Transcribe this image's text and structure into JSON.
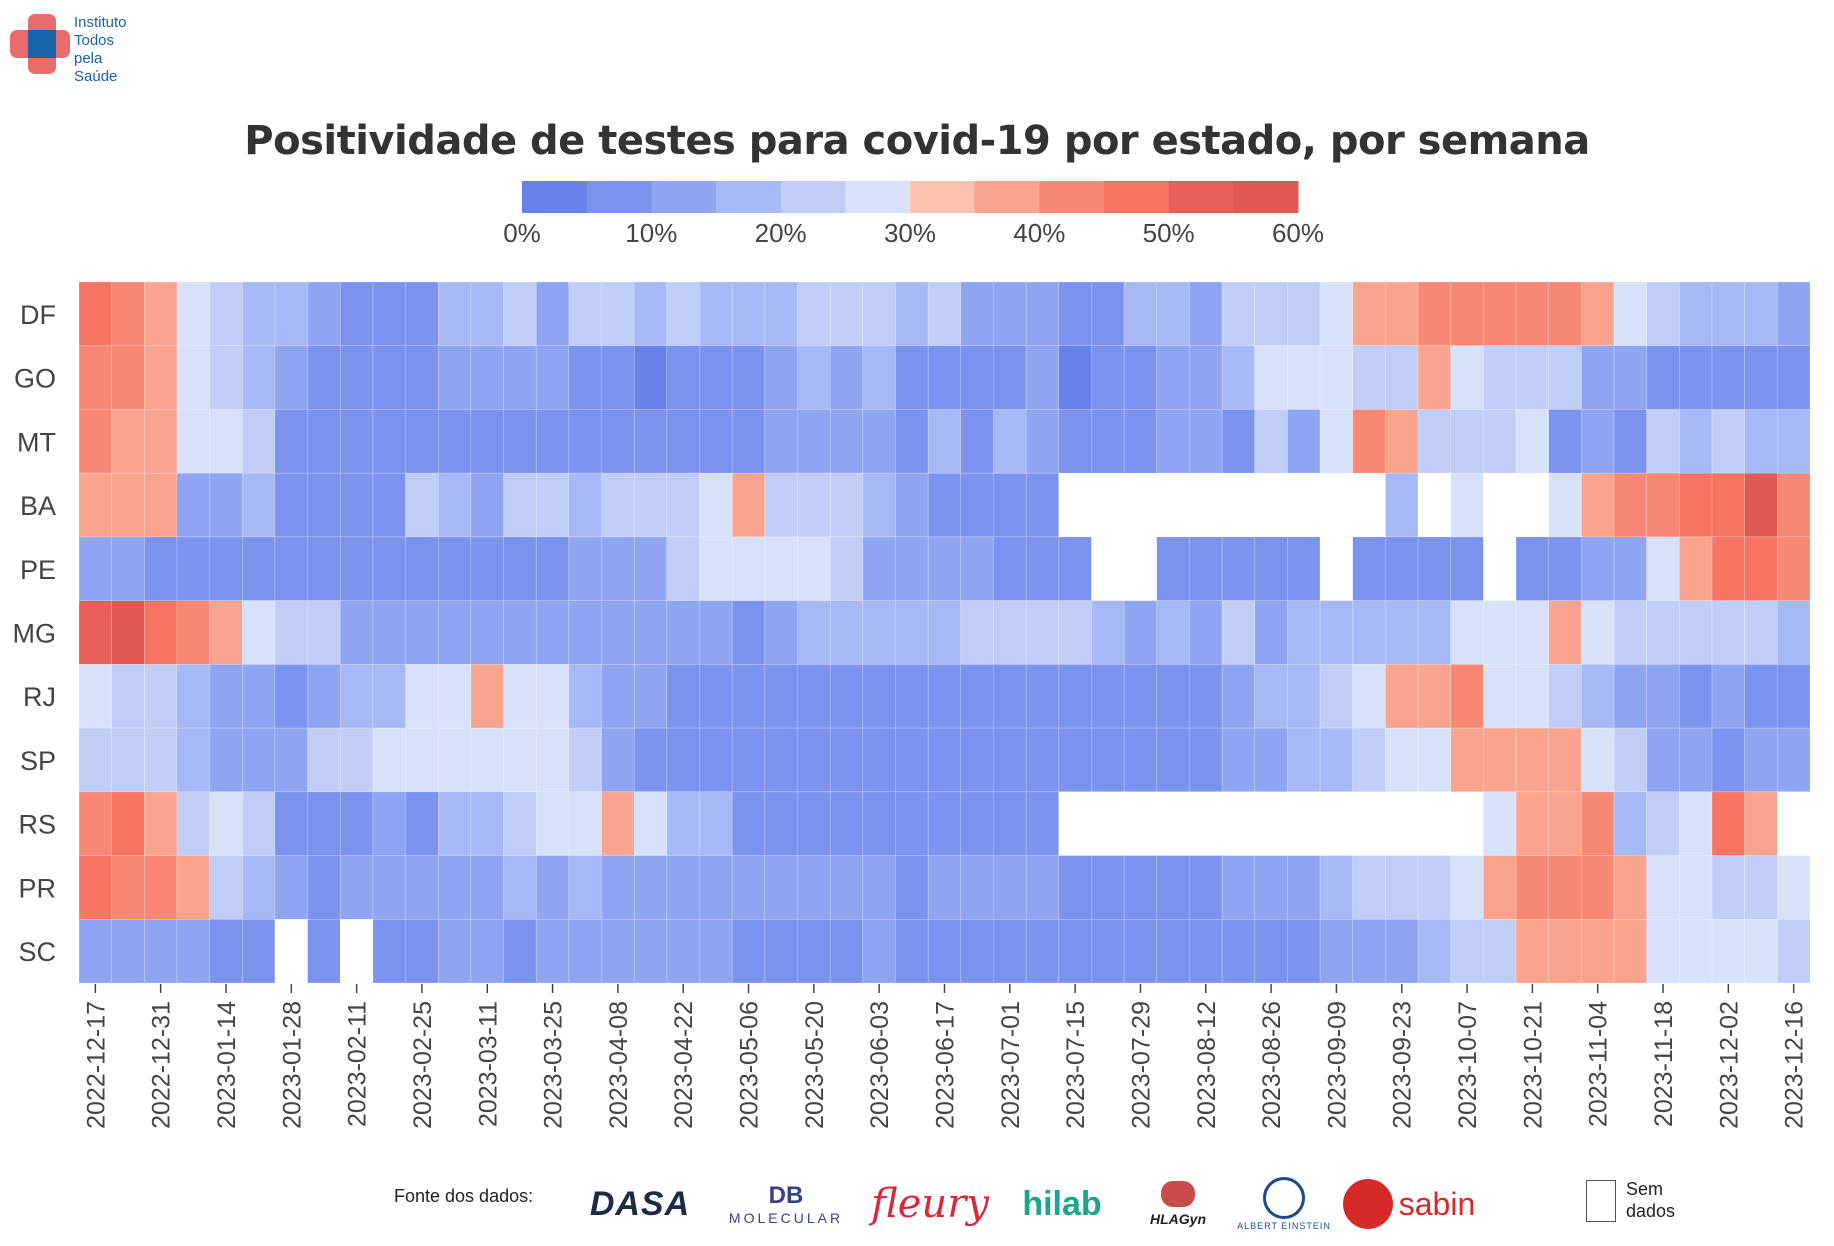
{
  "logo": {
    "line1": "Instituto",
    "line2": "Todos",
    "line3": "pela",
    "line4": "Saúde"
  },
  "footer": {
    "source_label": "Fonte dos dados:",
    "logos": {
      "dasa": "DASA",
      "db_line1": "DB",
      "db_line2": "MOLECULAR",
      "fleury": "fleury",
      "hilab": "hilab",
      "hlagyn": "HLAGyn",
      "einstein": "ALBERT EINSTEIN",
      "sabin": "sabin"
    },
    "no_data_line1": "Sem",
    "no_data_line2": "dados"
  },
  "chart_data": {
    "type": "heatmap",
    "title": "Positividade de testes para covid-19 por estado, por semana",
    "color_scale": {
      "tick_labels": [
        "0%",
        "10%",
        "20%",
        "30%",
        "40%",
        "50%",
        "60%"
      ],
      "range": [
        0,
        60
      ],
      "step": 5,
      "colors": [
        "#6682e8",
        "#7b93ee",
        "#8fa5f2",
        "#a6b8f5",
        "#bfcdf7",
        "#d7e1fa",
        "#fbc2ad",
        "#f9a48f",
        "#f88873",
        "#f57464",
        "#e66057",
        "#df5a52"
      ],
      "no_data_color": "#ffffff"
    },
    "y_categories": [
      "DF",
      "GO",
      "MT",
      "BA",
      "PE",
      "MG",
      "RJ",
      "SP",
      "RS",
      "PR",
      "SC"
    ],
    "x_tick_labels": [
      "2022-12-17",
      "2022-12-31",
      "2023-01-14",
      "2023-01-28",
      "2023-02-11",
      "2023-02-25",
      "2023-03-11",
      "2023-03-25",
      "2023-04-08",
      "2023-04-22",
      "2023-05-06",
      "2023-05-20",
      "2023-06-03",
      "2023-06-17",
      "2023-07-01",
      "2023-07-15",
      "2023-07-29",
      "2023-08-12",
      "2023-08-26",
      "2023-09-09",
      "2023-09-23",
      "2023-10-07",
      "2023-10-21",
      "2023-11-04",
      "2023-11-18",
      "2023-12-02",
      "2023-12-16"
    ],
    "weeks": [
      "2022-12-17",
      "2022-12-24",
      "2022-12-31",
      "2023-01-07",
      "2023-01-14",
      "2023-01-21",
      "2023-01-28",
      "2023-02-04",
      "2023-02-11",
      "2023-02-18",
      "2023-02-25",
      "2023-03-04",
      "2023-03-11",
      "2023-03-18",
      "2023-03-25",
      "2023-04-01",
      "2023-04-08",
      "2023-04-15",
      "2023-04-22",
      "2023-04-29",
      "2023-05-06",
      "2023-05-13",
      "2023-05-20",
      "2023-05-27",
      "2023-06-03",
      "2023-06-10",
      "2023-06-17",
      "2023-06-24",
      "2023-07-01",
      "2023-07-08",
      "2023-07-15",
      "2023-07-22",
      "2023-07-29",
      "2023-08-05",
      "2023-08-12",
      "2023-08-19",
      "2023-08-26",
      "2023-09-02",
      "2023-09-09",
      "2023-09-16",
      "2023-09-23",
      "2023-09-30",
      "2023-10-07",
      "2023-10-14",
      "2023-10-21",
      "2023-10-28",
      "2023-11-04",
      "2023-11-11",
      "2023-11-18",
      "2023-11-25",
      "2023-12-02",
      "2023-12-09",
      "2023-12-16"
    ],
    "values": {
      "DF": [
        46,
        43,
        37,
        28,
        22,
        17,
        16,
        13,
        9,
        9,
        9,
        15,
        15,
        20,
        14,
        20,
        21,
        19,
        20,
        19,
        19,
        18,
        20,
        20,
        21,
        17,
        20,
        10,
        10,
        10,
        7,
        7,
        15,
        15,
        13,
        20,
        20,
        24,
        28,
        36,
        36,
        40,
        44,
        44,
        44,
        40,
        38,
        28,
        24,
        17,
        17,
        15,
        13
      ],
      "GO": [
        41,
        40,
        36,
        27,
        20,
        18,
        14,
        9,
        9,
        9,
        9,
        10,
        10,
        13,
        13,
        9,
        9,
        4,
        9,
        9,
        9,
        13,
        15,
        13,
        15,
        9,
        9,
        9,
        9,
        10,
        4,
        9,
        9,
        12,
        14,
        18,
        26,
        27,
        26,
        24,
        20,
        36,
        27,
        24,
        22,
        22,
        12,
        12,
        9,
        9,
        9,
        9,
        9
      ],
      "MT": [
        40,
        38,
        38,
        27,
        27,
        22,
        9,
        6,
        9,
        9,
        9,
        6,
        9,
        9,
        5,
        6,
        9,
        9,
        9,
        9,
        9,
        13,
        13,
        13,
        13,
        9,
        16,
        9,
        17,
        14,
        9,
        9,
        5,
        14,
        14,
        9,
        22,
        14,
        28,
        40,
        38,
        24,
        24,
        24,
        27,
        9,
        13,
        9,
        20,
        18,
        20,
        16,
        15
      ],
      "BA": [
        39,
        35,
        35,
        14,
        14,
        19,
        9,
        9,
        9,
        5,
        20,
        17,
        12,
        21,
        20,
        17,
        23,
        22,
        24,
        28,
        35,
        23,
        24,
        23,
        16,
        10,
        9,
        9,
        9,
        7,
        null,
        null,
        null,
        null,
        null,
        null,
        null,
        null,
        null,
        null,
        17,
        null,
        27,
        null,
        null,
        27,
        37,
        42,
        43,
        45,
        48,
        56,
        40
      ],
      "PE": [
        10,
        10,
        6,
        6,
        6,
        5,
        5,
        5,
        5,
        5,
        5,
        8,
        8,
        8,
        8,
        13,
        13,
        12,
        23,
        27,
        27,
        28,
        28,
        22,
        13,
        13,
        12,
        13,
        5,
        9,
        5,
        null,
        null,
        5,
        5,
        5,
        5,
        5,
        null,
        5,
        5,
        5,
        5,
        null,
        9,
        9,
        14,
        14,
        28,
        38,
        45,
        49,
        42
      ],
      "MG": [
        53,
        55,
        49,
        43,
        35,
        26,
        22,
        22,
        12,
        12,
        12,
        12,
        12,
        14,
        13,
        13,
        12,
        12,
        13,
        12,
        9,
        13,
        19,
        18,
        19,
        17,
        17,
        22,
        22,
        22,
        20,
        16,
        13,
        18,
        13,
        23,
        12,
        18,
        17,
        17,
        17,
        17,
        27,
        27,
        28,
        38,
        27,
        24,
        22,
        24,
        24,
        20,
        17
      ],
      "RJ": [
        25,
        24,
        20,
        18,
        12,
        12,
        9,
        13,
        18,
        18,
        27,
        27,
        35,
        27,
        27,
        18,
        13,
        13,
        9,
        9,
        9,
        9,
        9,
        9,
        5,
        5,
        5,
        9,
        5,
        5,
        5,
        5,
        5,
        9,
        9,
        12,
        17,
        19,
        23,
        28,
        35,
        36,
        42,
        28,
        27,
        22,
        19,
        12,
        13,
        9,
        12,
        9,
        9
      ],
      "SP": [
        23,
        21,
        23,
        19,
        14,
        14,
        14,
        20,
        24,
        25,
        27,
        27,
        28,
        28,
        26,
        20,
        14,
        9,
        9,
        9,
        9,
        9,
        5,
        5,
        5,
        5,
        5,
        5,
        5,
        5,
        5,
        5,
        9,
        9,
        9,
        12,
        14,
        17,
        17,
        23,
        27,
        27,
        37,
        37,
        36,
        36,
        27,
        20,
        14,
        14,
        9,
        13,
        13
      ],
      "RS": [
        42,
        45,
        36,
        22,
        25,
        20,
        9,
        9,
        9,
        14,
        9,
        17,
        17,
        23,
        27,
        28,
        36,
        25,
        18,
        19,
        9,
        9,
        9,
        9,
        9,
        5,
        5,
        5,
        5,
        9,
        null,
        null,
        null,
        null,
        null,
        null,
        null,
        null,
        null,
        null,
        null,
        null,
        null,
        27,
        37,
        37,
        44,
        19,
        21,
        25,
        45,
        39,
        null
      ],
      "PR": [
        45,
        44,
        42,
        35,
        24,
        19,
        14,
        9,
        13,
        13,
        13,
        13,
        13,
        15,
        13,
        17,
        12,
        13,
        13,
        13,
        13,
        13,
        13,
        13,
        13,
        9,
        12,
        13,
        12,
        12,
        9,
        9,
        9,
        9,
        9,
        12,
        13,
        14,
        17,
        20,
        24,
        24,
        28,
        38,
        40,
        43,
        43,
        37,
        27,
        27,
        24,
        24,
        27
      ],
      "SC": [
        14,
        14,
        12,
        10,
        6,
        6,
        null,
        9,
        null,
        9,
        9,
        12,
        13,
        9,
        12,
        13,
        12,
        12,
        12,
        12,
        9,
        9,
        9,
        9,
        14,
        9,
        9,
        9,
        9,
        6,
        9,
        6,
        5,
        6,
        5,
        5,
        9,
        9,
        12,
        12,
        14,
        17,
        22,
        22,
        35,
        35,
        35,
        35,
        27,
        27,
        27,
        27,
        20
      ]
    }
  }
}
